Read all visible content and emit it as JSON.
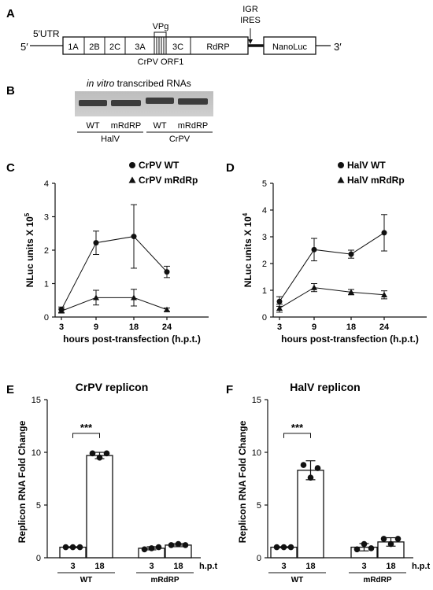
{
  "panel_a": {
    "letter": "A",
    "utr5": "5′UTR",
    "prime5": "5′",
    "prime3": "3′",
    "genes": [
      "1A",
      "2B",
      "2C",
      "3A",
      "3C",
      "RdRP"
    ],
    "vpg": "VPg",
    "orf": "CrPV ORF1",
    "igr_line1": "IGR",
    "igr_line2": "IRES",
    "reporter": "NanoLuc"
  },
  "panel_b": {
    "letter": "B",
    "title_italic": "in vitro",
    "title_rest": " transcribed RNAs",
    "lanes": [
      "WT",
      "mRdRP",
      "WT",
      "mRdRP"
    ],
    "groups": [
      "HalV",
      "CrPV"
    ]
  },
  "chart_data": [
    {
      "panel": "C",
      "type": "line",
      "x": [
        3,
        9,
        18,
        24
      ],
      "xlabel": "hours post-transfection (h.p.t.)",
      "ylabel": "NLuc units X 10",
      "ylabel_exp": "5",
      "ylim": [
        0,
        4
      ],
      "yticks": [
        "0",
        "1",
        "2",
        "3",
        "4"
      ],
      "series": [
        {
          "name": "CrPV WT",
          "marker": "circle",
          "values": [
            0.22,
            2.22,
            2.41,
            1.35
          ],
          "err": [
            0.08,
            0.35,
            0.95,
            0.17
          ]
        },
        {
          "name": "CrPV mRdRp",
          "marker": "triangle",
          "values": [
            0.18,
            0.58,
            0.58,
            0.22
          ],
          "err": [
            0.06,
            0.22,
            0.25,
            0.05
          ]
        }
      ]
    },
    {
      "panel": "D",
      "type": "line",
      "x": [
        3,
        9,
        18,
        24
      ],
      "xlabel": "hours post-transfection (h.p.t.)",
      "ylabel": "NLuc units X 10",
      "ylabel_exp": "4",
      "ylim": [
        0,
        5
      ],
      "yticks": [
        "0",
        "1",
        "2",
        "3",
        "4",
        "5"
      ],
      "series": [
        {
          "name": "HalV WT",
          "marker": "circle",
          "values": [
            0.58,
            2.52,
            2.35,
            3.15
          ],
          "err": [
            0.18,
            0.42,
            0.15,
            0.68
          ]
        },
        {
          "name": "HalV mRdRp",
          "marker": "triangle",
          "values": [
            0.33,
            1.1,
            0.93,
            0.83
          ],
          "err": [
            0.15,
            0.15,
            0.1,
            0.15
          ]
        }
      ]
    },
    {
      "panel": "E",
      "type": "bar",
      "title": "CrPV replicon",
      "ylabel": "Replicon RNA Fold Change",
      "ylim": [
        0,
        15
      ],
      "yticks": [
        "0",
        "5",
        "10",
        "15"
      ],
      "categories": [
        "3",
        "18",
        "3",
        "18"
      ],
      "groups": [
        "WT",
        "mRdRP"
      ],
      "unit": "h.p.t",
      "values": [
        1.0,
        9.7,
        0.9,
        1.2
      ],
      "err": [
        0.05,
        0.3,
        0.15,
        0.15
      ],
      "points": [
        [
          1.0,
          1.0,
          1.0
        ],
        [
          9.9,
          9.5,
          9.9
        ],
        [
          0.8,
          0.9,
          1.0
        ],
        [
          1.2,
          1.3,
          1.2
        ]
      ],
      "significance": "***"
    },
    {
      "panel": "F",
      "type": "bar",
      "title": "HalV replicon",
      "ylabel": "Replicon RNA Fold Change",
      "ylim": [
        0,
        15
      ],
      "yticks": [
        "0",
        "5",
        "10",
        "15"
      ],
      "categories": [
        "3",
        "18",
        "3",
        "18"
      ],
      "groups": [
        "WT",
        "mRdRP"
      ],
      "unit": "h.p.t",
      "values": [
        1.0,
        8.3,
        1.0,
        1.5
      ],
      "err": [
        0.05,
        0.9,
        0.35,
        0.4
      ],
      "points": [
        [
          1.0,
          1.0,
          1.0
        ],
        [
          8.8,
          7.6,
          8.5
        ],
        [
          0.8,
          1.3,
          0.9
        ],
        [
          1.8,
          1.3,
          1.8
        ]
      ],
      "significance": "***"
    }
  ]
}
